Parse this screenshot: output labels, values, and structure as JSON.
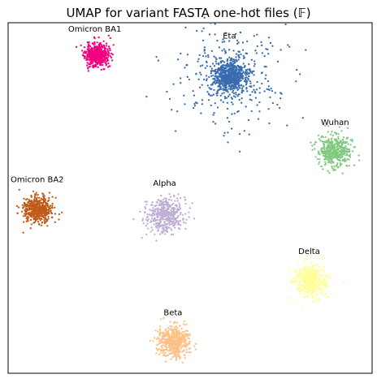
{
  "chart_data": {
    "type": "scatter",
    "title": "UMAP for variant FASTA one-hot files (𝔽)",
    "xlabel": "",
    "ylabel": "",
    "grid": false,
    "legend": "none",
    "xticks": false,
    "yticks": false,
    "xlim": [
      0,
      100
    ],
    "ylim": [
      0,
      100
    ],
    "series": [
      {
        "name": "Omicron BA1",
        "color": "#f0027f",
        "center": [
          24.3,
          90.8
        ],
        "spread": 1.6,
        "count": 520,
        "outlier_spread": 0,
        "outlier_count": 0,
        "seed": 11,
        "label_pos": [
          23.8,
          97.5
        ]
      },
      {
        "name": "Eta",
        "color": "#386cb0",
        "center": [
          60.8,
          84.5
        ],
        "spread": 2.2,
        "count": 600,
        "outlier_spread": 7.5,
        "outlier_count": 320,
        "seed": 23,
        "label_pos": [
          60.8,
          95.5
        ]
      },
      {
        "name": "Wuhan",
        "color": "#7fc97f",
        "center": [
          89.8,
          63.5
        ],
        "spread": 2.3,
        "count": 420,
        "outlier_spread": 0,
        "outlier_count": 0,
        "seed": 37,
        "label_pos": [
          89.8,
          70.8
        ]
      },
      {
        "name": "Omicron BA2",
        "color": "#bf5b17",
        "center": [
          8.2,
          46.8
        ],
        "spread": 2.0,
        "count": 480,
        "outlier_spread": 0,
        "outlier_count": 0,
        "seed": 41,
        "label_pos": [
          8.0,
          54.5
        ]
      },
      {
        "name": "Alpha",
        "color": "#beaed4",
        "center": [
          43.0,
          45.0
        ],
        "spread": 2.5,
        "count": 420,
        "outlier_spread": 0,
        "outlier_count": 0,
        "seed": 53,
        "label_pos": [
          43.0,
          53.5
        ]
      },
      {
        "name": "Delta",
        "color": "#ffff99",
        "center": [
          83.0,
          26.5
        ],
        "spread": 2.2,
        "count": 480,
        "outlier_spread": 0,
        "outlier_count": 0,
        "seed": 67,
        "label_pos": [
          82.7,
          34.0
        ]
      },
      {
        "name": "Beta",
        "color": "#fdc086",
        "center": [
          45.4,
          9.0
        ],
        "spread": 2.2,
        "count": 520,
        "outlier_spread": 0,
        "outlier_count": 0,
        "seed": 79,
        "label_pos": [
          45.3,
          16.5
        ]
      }
    ]
  }
}
